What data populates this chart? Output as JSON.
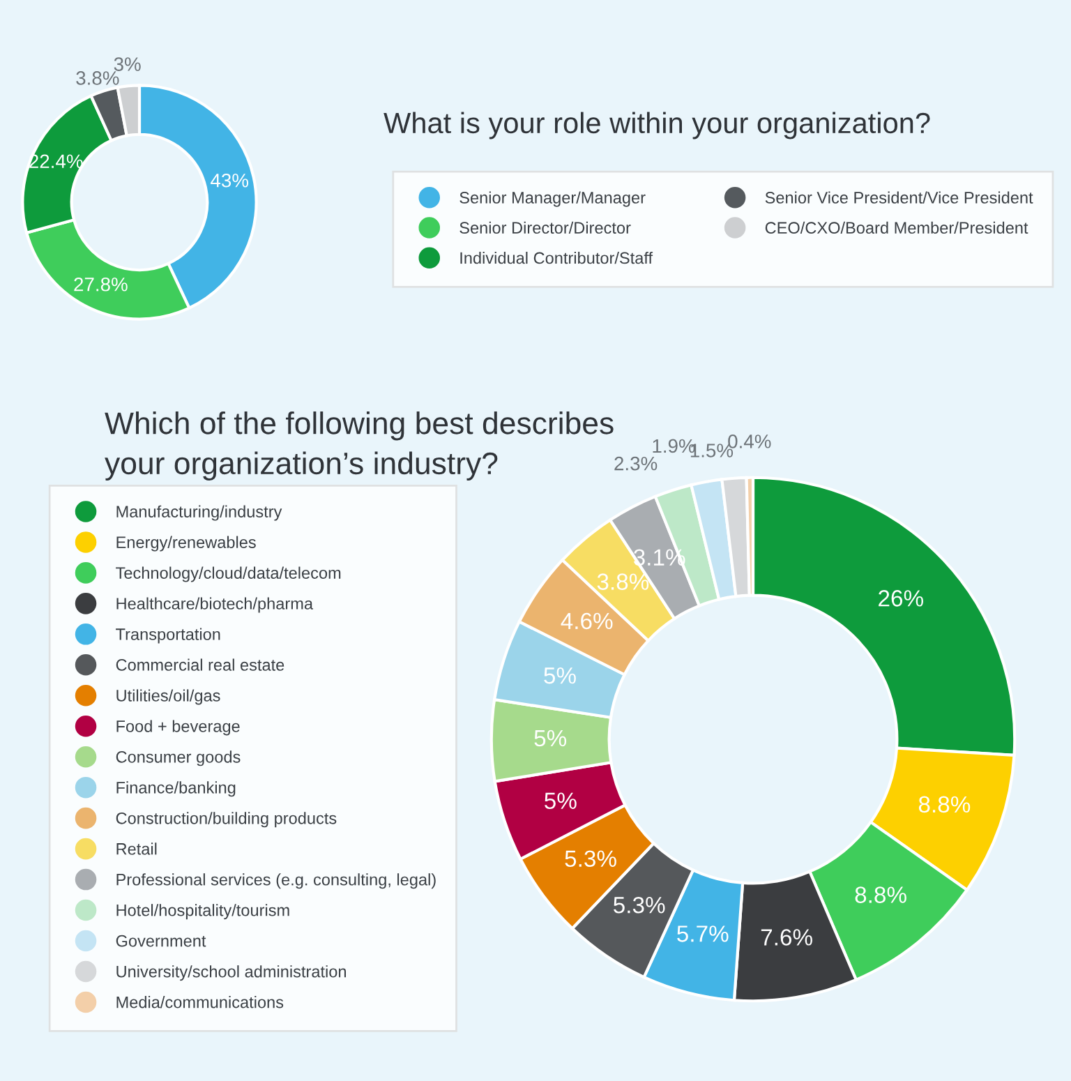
{
  "chart_data": [
    {
      "type": "donut",
      "title": "What is your role within your organization?",
      "legend": "right",
      "categories": [
        "Senior Manager/Manager",
        "Senior Director/Director",
        "Individual Contributor/Staff",
        "Senior Vice President/Vice President",
        "CEO/CXO/Board Member/President"
      ],
      "values": [
        43,
        27.8,
        22.4,
        3.8,
        3
      ],
      "value_labels": [
        "43%",
        "27.8%",
        "22.4%",
        "3.8%",
        "3%"
      ],
      "colors": [
        "#42b4e6",
        "#3fcd5b",
        "#0e9b3c",
        "#555a5e",
        "#cdcfd1"
      ]
    },
    {
      "type": "donut",
      "title": "Which of the following best describes\nyour organization’s industry?",
      "legend": "left",
      "categories": [
        "Manufacturing/industry",
        "Energy/renewables",
        "Technology/cloud/data/telecom",
        "Healthcare/biotech/pharma",
        "Transportation",
        "Commercial real estate",
        "Utilities/oil/gas",
        "Food + beverage",
        "Consumer goods",
        "Finance/banking",
        "Construction/building products",
        "Retail",
        "Professional services (e.g. consulting, legal)",
        "Hotel/hospitality/tourism",
        "Government",
        "University/school administration",
        "Media/communications"
      ],
      "values": [
        26,
        8.8,
        8.8,
        7.6,
        5.7,
        5.3,
        5.3,
        5,
        5,
        5,
        4.6,
        3.8,
        3.1,
        2.3,
        1.9,
        1.5,
        0.4
      ],
      "value_labels": [
        "26%",
        "8.8%",
        "8.8%",
        "7.6%",
        "5.7%",
        "5.3%",
        "5.3%",
        "5%",
        "5%",
        "5%",
        "4.6%",
        "3.8%",
        "3.1%",
        "2.3%",
        "1.9%",
        "1.5%",
        "0.4%"
      ],
      "colors": [
        "#0e9b3c",
        "#fdd000",
        "#3fcd5b",
        "#3b3d40",
        "#42b4e6",
        "#55585b",
        "#e47f00",
        "#b10043",
        "#a6da8c",
        "#9bd4ea",
        "#ebb46e",
        "#f7dd63",
        "#a9adb1",
        "#bde8c8",
        "#c4e4f4",
        "#d6d8da",
        "#f3cfa9"
      ]
    }
  ]
}
